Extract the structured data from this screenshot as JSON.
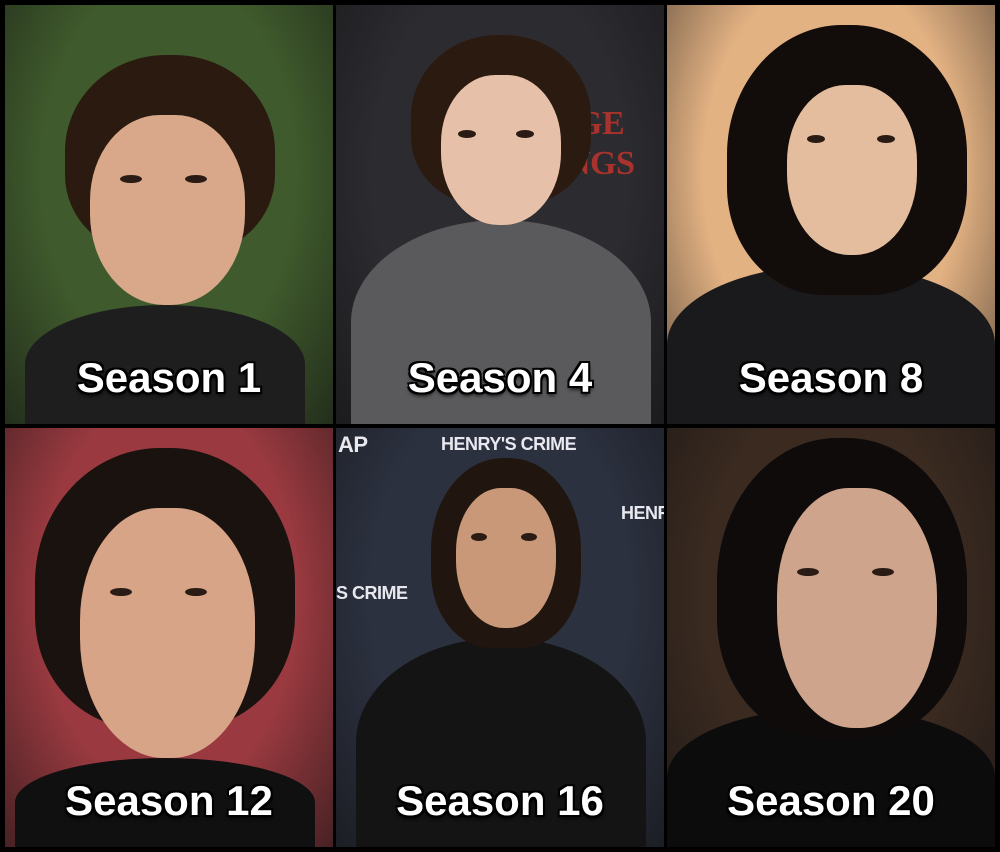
{
  "panels": [
    {
      "caption": "Season 1",
      "bg": "#3f5a2c",
      "hair": "#2a1a10",
      "skin": "#d9a88a",
      "clothes": "#1e1e1e"
    },
    {
      "caption": "Season 4",
      "bg": "#2b2b30",
      "hair": "#2b1a10",
      "skin": "#e6c0a8",
      "clothes": "#5a5a5c"
    },
    {
      "caption": "Season 8",
      "bg": "#e3b283",
      "hair": "#120c0a",
      "skin": "#e3bd9e",
      "clothes": "#1a1a1c"
    },
    {
      "caption": "Season 12",
      "bg": "#9a3a40",
      "hair": "#1a120e",
      "skin": "#d8a488",
      "clothes": "#101010"
    },
    {
      "caption": "Season 16",
      "bg": "#2c3140",
      "hair": "#20160f",
      "skin": "#c99878",
      "clothes": "#141414"
    },
    {
      "caption": "Season 20",
      "bg": "#3a2a20",
      "hair": "#0e0b0a",
      "skin": "#cfa48c",
      "clothes": "#0c0c0c"
    }
  ],
  "scene_text": {
    "backdrop_title": "HENRY'S CRIME",
    "backdrop_left": "S CRIME",
    "backdrop_right": "HENR",
    "backdrop_logo": "AP",
    "stranger_things_1": "GE",
    "stranger_things_2": "NGS"
  }
}
